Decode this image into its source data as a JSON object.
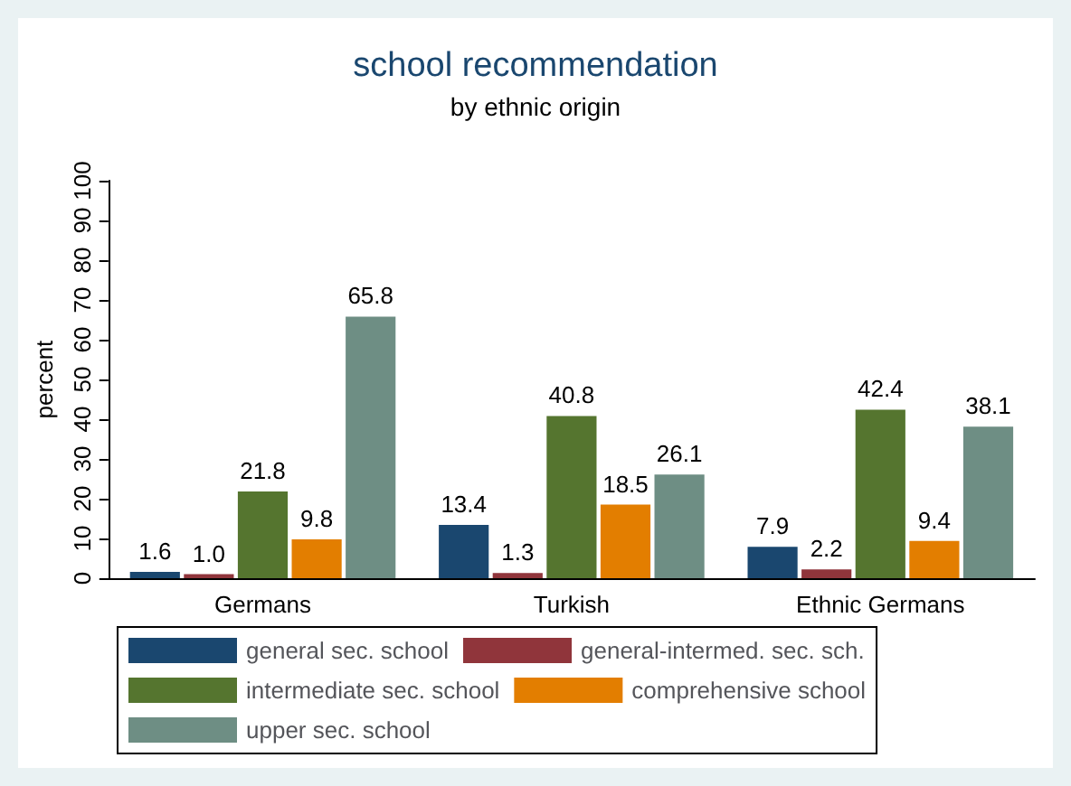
{
  "chart_data": {
    "type": "bar",
    "title": "school recommendation",
    "subtitle": "by ethnic origin",
    "ylabel": "percent",
    "categories": [
      "Germans",
      "Turkish",
      "Ethnic Germans"
    ],
    "series": [
      {
        "name": "general sec. school",
        "color": "#1a476f",
        "values": [
          1.6,
          13.4,
          7.9
        ],
        "value_labels": [
          "1.6",
          "13.4",
          "7.9"
        ]
      },
      {
        "name": "general-intermed. sec. sch.",
        "color": "#90353b",
        "values": [
          1.0,
          1.3,
          2.2
        ],
        "value_labels": [
          "1.0",
          "1.3",
          "2.2"
        ]
      },
      {
        "name": "intermediate sec. school",
        "color": "#55752f",
        "values": [
          21.8,
          40.8,
          42.4
        ],
        "value_labels": [
          "21.8",
          "40.8",
          "42.4"
        ]
      },
      {
        "name": "comprehensive school",
        "color": "#e37e00",
        "values": [
          9.8,
          18.5,
          9.4
        ],
        "value_labels": [
          "9.8",
          "18.5",
          "9.4"
        ]
      },
      {
        "name": "upper sec. school",
        "color": "#6e8e84",
        "values": [
          65.8,
          26.1,
          38.1
        ],
        "value_labels": [
          "65.8",
          "26.1",
          "38.1"
        ]
      }
    ],
    "ylim": [
      0,
      100
    ],
    "yticks": [
      0,
      10,
      20,
      30,
      40,
      50,
      60,
      70,
      80,
      90,
      100
    ],
    "grid": false,
    "legend": "bottom"
  }
}
